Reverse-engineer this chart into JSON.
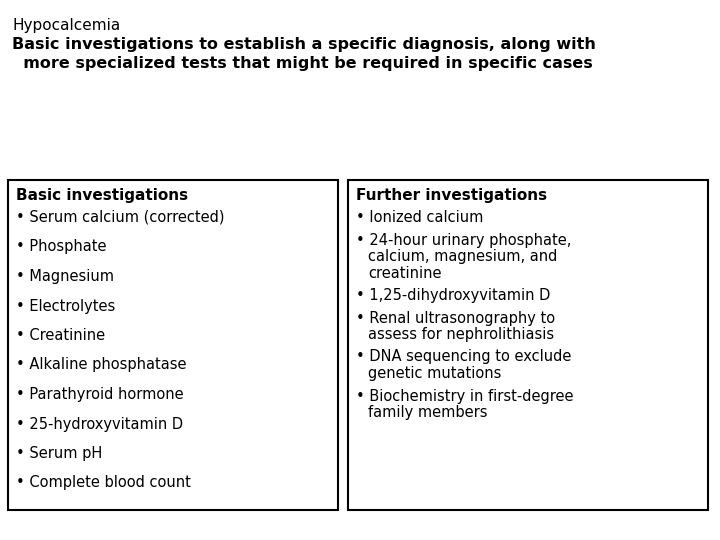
{
  "title": "Hypocalcemia",
  "subtitle": "Basic investigations to establish a specific diagnosis, along with\n  more specialized tests that might be required in specific cases",
  "left_header": "Basic investigations",
  "left_items": [
    "Serum calcium (corrected)",
    "Phosphate",
    "Magnesium",
    "Electrolytes",
    "Creatinine",
    "Alkaline phosphatase",
    "Parathyroid hormone",
    "25-hydroxyvitamin D",
    "Serum pH",
    "Complete blood count"
  ],
  "right_header": "Further investigations",
  "right_items": [
    "Ionized calcium",
    "24-hour urinary phosphate,\ncalcium, magnesium, and\ncreatinine",
    "1,25-dihydroxyvitamin D",
    "Renal ultrasonography to\nassess for nephrolithiasis",
    "DNA sequencing to exclude\ngenetic mutations",
    "Biochemistry in first-degree\nfamily members"
  ],
  "bg_color": "#ffffff",
  "box_color": "#ffffff",
  "border_color": "#000000",
  "text_color": "#000000",
  "title_fontsize": 11,
  "subtitle_fontsize": 11.5,
  "header_fontsize": 11,
  "item_fontsize": 10.5
}
